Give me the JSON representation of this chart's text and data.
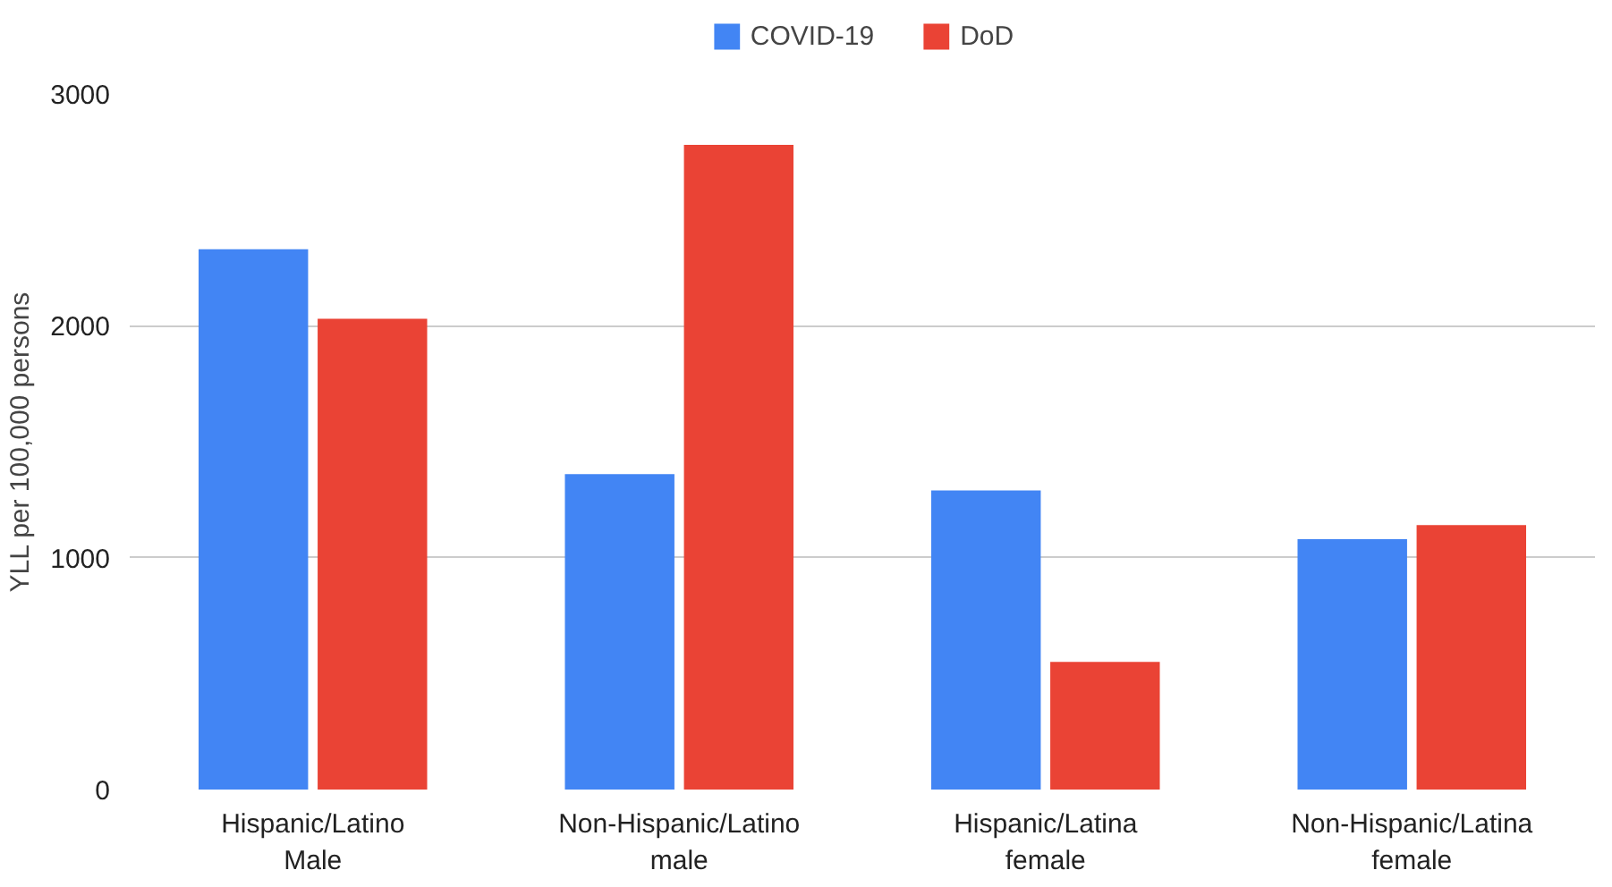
{
  "chart_data": {
    "type": "bar",
    "ylabel": "YLL per 100,000 persons",
    "categories": [
      "Hispanic/Latino\nMale",
      "Non-Hispanic/Latino\nmale",
      "Hispanic/Latina\nfemale",
      "Non-Hispanic/Latina\nfemale"
    ],
    "series": [
      {
        "name": "COVID-19",
        "color": "#4285f4",
        "values": [
          2330,
          1360,
          1290,
          1080
        ]
      },
      {
        "name": "DoD",
        "color": "#ea4335",
        "values": [
          2030,
          2780,
          550,
          1140
        ]
      }
    ],
    "ylim": [
      0,
      3000
    ],
    "yticks": [
      0,
      1000,
      2000,
      3000
    ],
    "grid": "y",
    "legend": "top"
  }
}
